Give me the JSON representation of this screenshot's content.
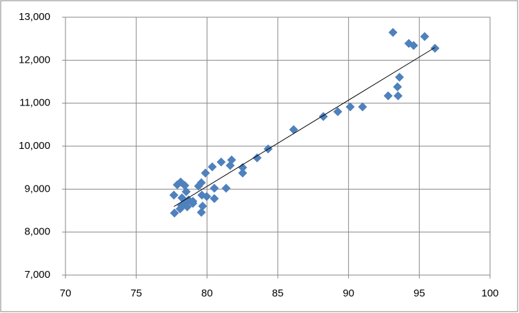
{
  "chart_data": {
    "type": "scatter",
    "color": "#4f81bd",
    "grid": true,
    "trendline": true,
    "xlim": [
      70,
      100
    ],
    "xticks": [
      70,
      75,
      80,
      85,
      90,
      95,
      100
    ],
    "ylim": [
      7000,
      13000
    ],
    "yticks": [
      {
        "value": 7000,
        "label": "7,000"
      },
      {
        "value": 8000,
        "label": "8,000"
      },
      {
        "value": 9000,
        "label": "9,000"
      },
      {
        "value": 10000,
        "label": "10,000"
      },
      {
        "value": 11000,
        "label": "11,000"
      },
      {
        "value": 12000,
        "label": "12,000"
      },
      {
        "value": 13000,
        "label": "13,000"
      }
    ],
    "x": [
      93.14,
      95.38,
      94.26,
      94.6,
      96.11,
      93.6,
      93.46,
      93.5,
      92.8,
      90.99,
      90.12,
      89.24,
      88.22,
      86.12,
      84.32,
      83.54,
      81.74,
      81.0,
      81.64,
      82.52,
      82.52,
      80.37,
      79.89,
      79.6,
      79.4,
      80.52,
      81.35,
      77.9,
      78.14,
      78.43,
      78.53,
      77.66,
      78.23,
      78.7,
      79.64,
      79.98,
      79.0,
      79.0,
      78.2,
      78.6,
      78.1,
      79.69,
      80.52,
      77.7,
      79.6,
      78.4
    ],
    "y": [
      12647,
      12551,
      12390,
      12342,
      12278,
      11604,
      11380,
      11171,
      11171,
      10914,
      10914,
      10802,
      10690,
      10385,
      9936,
      9727,
      9679,
      9631,
      9551,
      9503,
      9374,
      9519,
      9374,
      9150,
      9069,
      9021,
      9021,
      9101,
      9166,
      9085,
      8941,
      8861,
      8797,
      8749,
      8861,
      8829,
      8668,
      8717,
      8620,
      8588,
      8540,
      8604,
      8781,
      8444,
      8460,
      8652
    ]
  }
}
